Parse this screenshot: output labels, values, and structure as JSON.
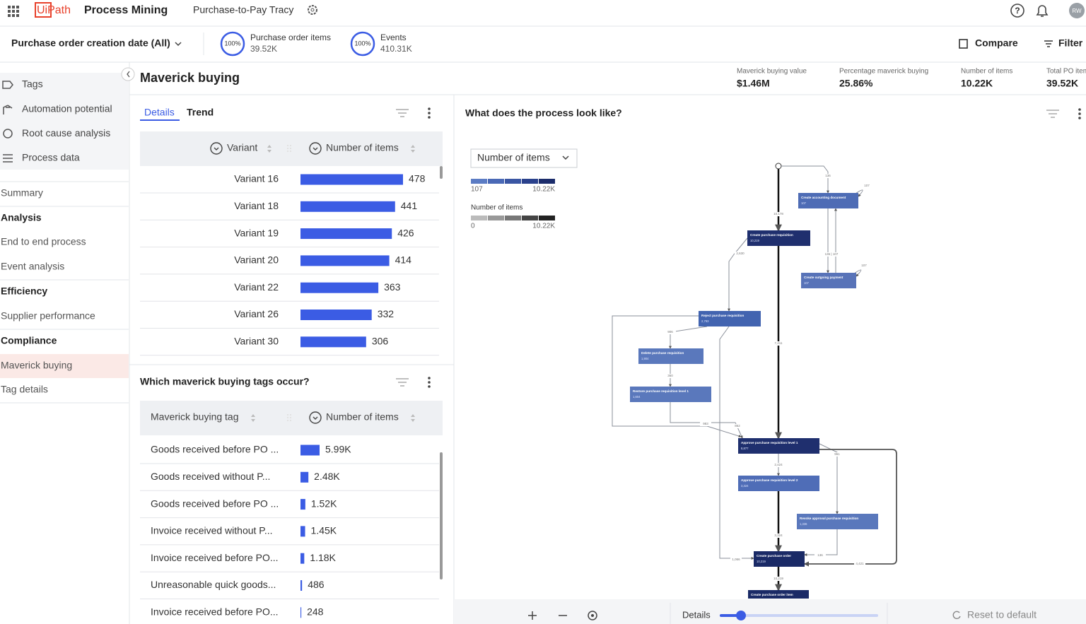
{
  "header": {
    "brand": "UiPath",
    "product": "Process Mining",
    "app": "Purchase-to-Pay Tracy",
    "avatar": "RW"
  },
  "toolbar": {
    "date_filter": "Purchase order creation date (All)",
    "metrics": [
      {
        "percent": "100%",
        "label": "Purchase order items",
        "value": "39.52K"
      },
      {
        "percent": "100%",
        "label": "Events",
        "value": "410.31K"
      }
    ],
    "compare": "Compare",
    "filter": "Filter"
  },
  "sidebar": {
    "tools": [
      "Tags",
      "Automation potential",
      "Root cause analysis",
      "Process data"
    ],
    "nav": [
      {
        "text": "Summary",
        "kind": "item"
      },
      {
        "text": "Analysis",
        "kind": "section"
      },
      {
        "text": "End to end process",
        "kind": "item"
      },
      {
        "text": "Event analysis",
        "kind": "item"
      },
      {
        "text": "Efficiency",
        "kind": "section"
      },
      {
        "text": "Supplier performance",
        "kind": "item"
      },
      {
        "text": "Compliance",
        "kind": "section"
      },
      {
        "text": "Maverick buying",
        "kind": "active"
      },
      {
        "text": "Tag details",
        "kind": "item"
      }
    ]
  },
  "page": {
    "title": "Maverick buying",
    "kpis": [
      {
        "label": "Maverick buying value",
        "value": "$1.46M"
      },
      {
        "label": "Percentage maverick buying",
        "value": "25.86%"
      },
      {
        "label": "Number of items",
        "value": "10.22K"
      },
      {
        "label": "Total PO items",
        "value": "39.52K"
      }
    ]
  },
  "variants_panel": {
    "tabs": [
      "Details",
      "Trend"
    ],
    "columns": [
      "Variant",
      "Number of items"
    ],
    "categories": [
      "Variant 16",
      "Variant 18",
      "Variant 19",
      "Variant 20",
      "Variant 22",
      "Variant 26",
      "Variant 30"
    ],
    "values": [
      478,
      441,
      426,
      414,
      363,
      332,
      306
    ],
    "color": "#3b5ce4"
  },
  "tags_panel": {
    "title": "Which maverick buying tags occur?",
    "columns": [
      "Maverick buying tag",
      "Number of items"
    ],
    "categories": [
      "Goods received before PO ...",
      "Goods received without P...",
      "Goods received before PO ...",
      "Invoice received without P...",
      "Invoice received before PO...",
      "Unreasonable quick goods...",
      "Invoice received before PO..."
    ],
    "values": [
      5990,
      2480,
      1520,
      1450,
      1180,
      486,
      248
    ],
    "value_labels": [
      "5.99K",
      "2.48K",
      "1.52K",
      "1.45K",
      "1.18K",
      "486",
      "248"
    ],
    "color": "#3b5ce4"
  },
  "process_panel": {
    "title": "What does the process look like?",
    "metric_select": "Number of items",
    "legend": [
      {
        "title": null,
        "min": "107",
        "max": "10.22K"
      },
      {
        "title": "Number of items",
        "min": "0",
        "max": "10.22K"
      }
    ],
    "nodes": [
      {
        "label": "Create accounting document",
        "count": "107"
      },
      {
        "label": "Create purchase requisition",
        "count": "10,219"
      },
      {
        "label": "Create outgoing payment",
        "count": "107"
      },
      {
        "label": "Reject purchase requisition",
        "count": "2,793"
      },
      {
        "label": "Delete purchase requisition",
        "count": "1,904"
      },
      {
        "label": "Restore purchase requisition level 1",
        "count": "1,604"
      },
      {
        "label": "Approve purchase requisition level 1",
        "count": "8,877"
      },
      {
        "label": "Approve purchase requisition level 2",
        "count": "3,324"
      },
      {
        "label": "Revoke approval purchase requisition",
        "count": "1,336"
      },
      {
        "label": "Create purchase order",
        "count": "10,219"
      },
      {
        "label": "Create purchase order item",
        "count": null
      }
    ],
    "edge_labels": [
      "136",
      "107",
      "10,178",
      "2,630",
      "136 | 107",
      "107",
      "906",
      "7,411",
      "360",
      "983",
      "852",
      "961",
      "2,424",
      "3,324",
      "1,066",
      "136",
      "4,421",
      "10,219"
    ],
    "footer": {
      "details": "Details",
      "reset": "Reset to default"
    }
  }
}
